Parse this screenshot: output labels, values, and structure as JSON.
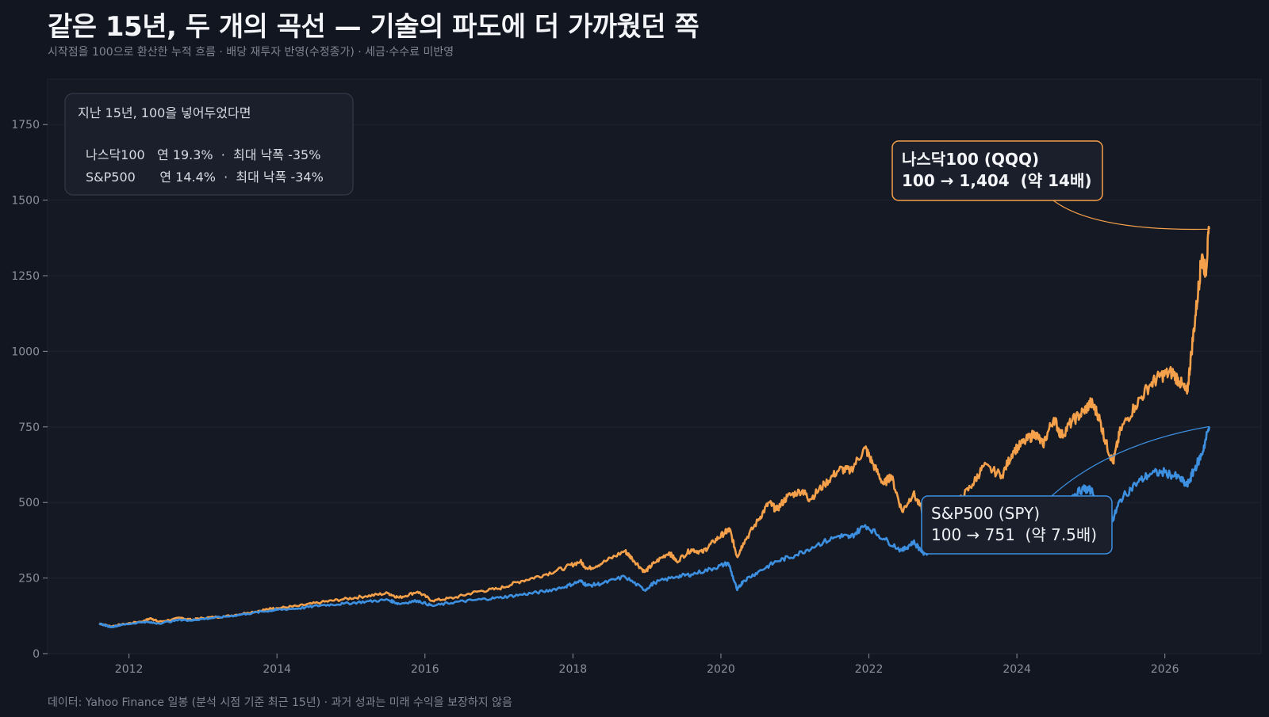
{
  "header": {
    "title": "같은 15년, 두 개의 곡선 — 기술의 파도에 더 가까웠던 쪽",
    "subtitle": "시작점을 100으로 환산한 누적 흐름 · 배당 재투자 반영(수정종가) · 세금·수수료 미반영"
  },
  "footer": {
    "note": "데이터: Yahoo Finance 일봉 (분석 시점 기준 최근 15년) · 과거 성과는 미래 수익을 보장하지 않음"
  },
  "summary_box": {
    "heading": "지난 15년, 100을 넣어두었다면",
    "rows": [
      "나스닥100   연 19.3%  ·  최대 낙폭 -35%",
      "S&P500      연 14.4%  ·  최대 낙폭 -34%"
    ]
  },
  "annotations": {
    "qqq": {
      "line1": "나스닥100 (QQQ)",
      "line2": "100 → 1,404  (약 14배)"
    },
    "spy": {
      "line1": "S&P500 (SPY)",
      "line2": "100 → 751  (약 7.5배)"
    }
  },
  "colors": {
    "background": "#121620",
    "qqq": "#f5a04a",
    "spy": "#3d8fe0",
    "grid": "#1f2430",
    "axis_text": "#8a909c"
  },
  "chart_data": {
    "type": "line",
    "title": "같은 15년, 두 개의 곡선 — 기술의 파도에 더 가까웠던 쪽",
    "xlabel": "",
    "ylabel": "",
    "xlim": [
      2010.9,
      2027.3
    ],
    "ylim": [
      0,
      1900
    ],
    "x_ticks": [
      2012,
      2014,
      2016,
      2018,
      2020,
      2022,
      2024,
      2026
    ],
    "y_ticks": [
      0,
      250,
      500,
      750,
      1000,
      1250,
      1500,
      1750
    ],
    "grid": true,
    "series": [
      {
        "name": "나스닥100 (QQQ)",
        "color": "#f5a04a",
        "points": [
          [
            2011.6,
            100
          ],
          [
            2011.75,
            90
          ],
          [
            2011.9,
            96
          ],
          [
            2012.2,
            108
          ],
          [
            2012.3,
            117
          ],
          [
            2012.4,
            105
          ],
          [
            2012.7,
            118
          ],
          [
            2012.85,
            112
          ],
          [
            2013.0,
            118
          ],
          [
            2013.3,
            123
          ],
          [
            2013.6,
            135
          ],
          [
            2013.9,
            148
          ],
          [
            2014.0,
            150
          ],
          [
            2014.3,
            158
          ],
          [
            2014.6,
            170
          ],
          [
            2014.9,
            180
          ],
          [
            2015.2,
            190
          ],
          [
            2015.5,
            200
          ],
          [
            2015.65,
            185
          ],
          [
            2015.9,
            205
          ],
          [
            2016.1,
            175
          ],
          [
            2016.4,
            185
          ],
          [
            2016.7,
            205
          ],
          [
            2017.0,
            215
          ],
          [
            2017.3,
            240
          ],
          [
            2017.6,
            260
          ],
          [
            2017.9,
            285
          ],
          [
            2018.1,
            305
          ],
          [
            2018.2,
            280
          ],
          [
            2018.4,
            300
          ],
          [
            2018.7,
            340
          ],
          [
            2018.8,
            315
          ],
          [
            2018.97,
            270
          ],
          [
            2019.1,
            300
          ],
          [
            2019.3,
            335
          ],
          [
            2019.4,
            305
          ],
          [
            2019.6,
            345
          ],
          [
            2019.75,
            335
          ],
          [
            2019.9,
            370
          ],
          [
            2020.05,
            400
          ],
          [
            2020.12,
            410
          ],
          [
            2020.22,
            320
          ],
          [
            2020.3,
            365
          ],
          [
            2020.5,
            440
          ],
          [
            2020.65,
            500
          ],
          [
            2020.75,
            475
          ],
          [
            2020.9,
            520
          ],
          [
            2021.1,
            540
          ],
          [
            2021.2,
            510
          ],
          [
            2021.4,
            560
          ],
          [
            2021.6,
            610
          ],
          [
            2021.75,
            605
          ],
          [
            2021.95,
            680
          ],
          [
            2022.05,
            630
          ],
          [
            2022.2,
            560
          ],
          [
            2022.3,
            590
          ],
          [
            2022.45,
            470
          ],
          [
            2022.6,
            530
          ],
          [
            2022.75,
            460
          ],
          [
            2022.9,
            450
          ],
          [
            2023.0,
            450
          ],
          [
            2023.2,
            500
          ],
          [
            2023.4,
            560
          ],
          [
            2023.55,
            620
          ],
          [
            2023.8,
            590
          ],
          [
            2023.95,
            670
          ],
          [
            2024.1,
            700
          ],
          [
            2024.25,
            730
          ],
          [
            2024.35,
            690
          ],
          [
            2024.5,
            780
          ],
          [
            2024.6,
            720
          ],
          [
            2024.75,
            770
          ],
          [
            2024.9,
            800
          ],
          [
            2025.0,
            830
          ],
          [
            2025.1,
            790
          ],
          [
            2025.2,
            700
          ],
          [
            2025.3,
            630
          ],
          [
            2025.4,
            740
          ],
          [
            2025.6,
            820
          ],
          [
            2025.8,
            890
          ],
          [
            2025.95,
            920
          ],
          [
            2026.1,
            930
          ],
          [
            2026.2,
            900
          ],
          [
            2026.3,
            860
          ],
          [
            2026.36,
            1000
          ],
          [
            2026.45,
            1200
          ],
          [
            2026.5,
            1320
          ],
          [
            2026.55,
            1260
          ],
          [
            2026.6,
            1404
          ]
        ]
      },
      {
        "name": "S&P500 (SPY)",
        "color": "#3d8fe0",
        "points": [
          [
            2011.6,
            100
          ],
          [
            2011.75,
            88
          ],
          [
            2011.9,
            95
          ],
          [
            2012.2,
            105
          ],
          [
            2012.4,
            100
          ],
          [
            2012.7,
            112
          ],
          [
            2012.85,
            110
          ],
          [
            2013.0,
            115
          ],
          [
            2013.3,
            122
          ],
          [
            2013.6,
            132
          ],
          [
            2013.9,
            142
          ],
          [
            2014.0,
            145
          ],
          [
            2014.3,
            150
          ],
          [
            2014.6,
            160
          ],
          [
            2014.9,
            165
          ],
          [
            2015.2,
            172
          ],
          [
            2015.5,
            178
          ],
          [
            2015.65,
            165
          ],
          [
            2015.9,
            175
          ],
          [
            2016.1,
            158
          ],
          [
            2016.4,
            170
          ],
          [
            2016.7,
            178
          ],
          [
            2017.0,
            185
          ],
          [
            2017.3,
            195
          ],
          [
            2017.6,
            205
          ],
          [
            2017.9,
            222
          ],
          [
            2018.1,
            240
          ],
          [
            2018.2,
            225
          ],
          [
            2018.4,
            232
          ],
          [
            2018.7,
            255
          ],
          [
            2018.97,
            210
          ],
          [
            2019.1,
            235
          ],
          [
            2019.4,
            255
          ],
          [
            2019.6,
            262
          ],
          [
            2019.9,
            282
          ],
          [
            2020.1,
            300
          ],
          [
            2020.22,
            210
          ],
          [
            2020.3,
            240
          ],
          [
            2020.5,
            270
          ],
          [
            2020.75,
            305
          ],
          [
            2021.0,
            325
          ],
          [
            2021.3,
            360
          ],
          [
            2021.6,
            390
          ],
          [
            2021.75,
            385
          ],
          [
            2021.95,
            425
          ],
          [
            2022.2,
            380
          ],
          [
            2022.45,
            340
          ],
          [
            2022.6,
            370
          ],
          [
            2022.75,
            330
          ],
          [
            2022.9,
            345
          ],
          [
            2023.1,
            375
          ],
          [
            2023.4,
            390
          ],
          [
            2023.55,
            410
          ],
          [
            2023.8,
            385
          ],
          [
            2023.95,
            430
          ],
          [
            2024.2,
            470
          ],
          [
            2024.35,
            455
          ],
          [
            2024.5,
            490
          ],
          [
            2024.7,
            515
          ],
          [
            2024.9,
            545
          ],
          [
            2025.0,
            540
          ],
          [
            2025.2,
            470
          ],
          [
            2025.3,
            445
          ],
          [
            2025.4,
            510
          ],
          [
            2025.6,
            560
          ],
          [
            2025.8,
            595
          ],
          [
            2026.0,
            600
          ],
          [
            2026.2,
            580
          ],
          [
            2026.3,
            555
          ],
          [
            2026.4,
            610
          ],
          [
            2026.5,
            660
          ],
          [
            2026.6,
            751
          ]
        ]
      }
    ]
  }
}
